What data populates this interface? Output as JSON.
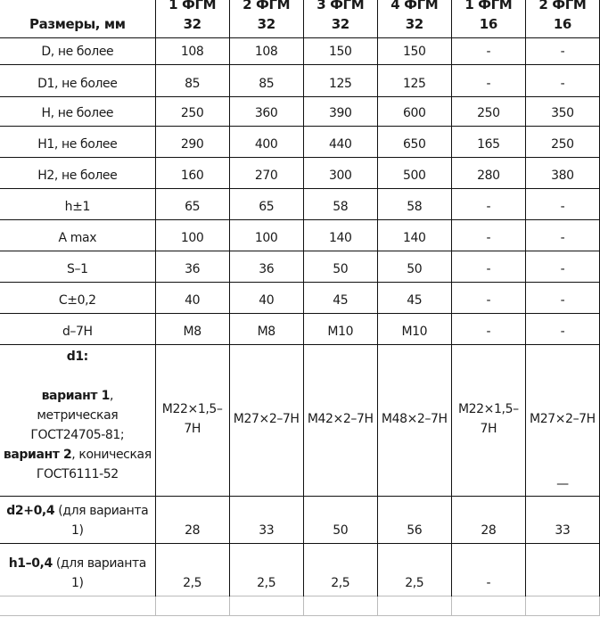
{
  "header": {
    "label": "Размеры, мм",
    "columns": [
      {
        "line1": "1 ФГМ",
        "line2": "32"
      },
      {
        "line1": "2 ФГМ",
        "line2": "32"
      },
      {
        "line1": "3 ФГМ",
        "line2": "32"
      },
      {
        "line1": "4 ФГМ",
        "line2": "32"
      },
      {
        "line1": "1 ФГМ",
        "line2": "16"
      },
      {
        "line1": "2 ФГМ",
        "line2": "16"
      }
    ]
  },
  "rows": [
    {
      "label": "D, не более",
      "values": [
        "108",
        "108",
        "150",
        "150",
        "-",
        "-"
      ]
    },
    {
      "label": "D1, не более",
      "values": [
        "85",
        "85",
        "125",
        "125",
        "-",
        "-"
      ]
    },
    {
      "label": "H, не более",
      "values": [
        "250",
        "360",
        "390",
        "600",
        "250",
        "350"
      ]
    },
    {
      "label": "H1, не более",
      "values": [
        "290",
        "400",
        "440",
        "650",
        "165",
        "250"
      ]
    },
    {
      "label": "H2, не более",
      "values": [
        "160",
        "270",
        "300",
        "500",
        "280",
        "380"
      ]
    },
    {
      "label": "h±1",
      "values": [
        "65",
        "65",
        "58",
        "58",
        "-",
        "-"
      ]
    },
    {
      "label": "A max",
      "values": [
        "100",
        "100",
        "140",
        "140",
        "-",
        "-"
      ]
    },
    {
      "label": "S–1",
      "values": [
        "36",
        "36",
        "50",
        "50",
        "-",
        "-"
      ]
    },
    {
      "label": "C±0,2",
      "values": [
        "40",
        "40",
        "45",
        "45",
        "-",
        "-"
      ]
    },
    {
      "label": "d–7H",
      "values": [
        "M8",
        "M8",
        "M10",
        "M10",
        "-",
        "-"
      ]
    }
  ],
  "d1_row": {
    "title": "d1:",
    "v1_bold": "вариант 1",
    "v1_text": ", метрическая ГОСТ24705-81;",
    "v2_bold": "вариант 2",
    "v2_text": ", коническая ГОСТ6111-52",
    "values": [
      "M22×1,5–7H",
      "M27×2–7H",
      "M42×2–7H",
      "M48×2–7H",
      "M22×1,5–7H",
      "M27×2–7H"
    ],
    "last_col_extra": "—"
  },
  "d2_row": {
    "bold": "d2+0,4",
    "text": " (для варианта 1)",
    "values": [
      "28",
      "33",
      "50",
      "56",
      "28",
      "33"
    ]
  },
  "h1_row": {
    "bold": "h1–0,4",
    "text": " (для варианта 1)",
    "values": [
      "2,5",
      "2,5",
      "2,5",
      "2,5",
      "-",
      ""
    ]
  }
}
